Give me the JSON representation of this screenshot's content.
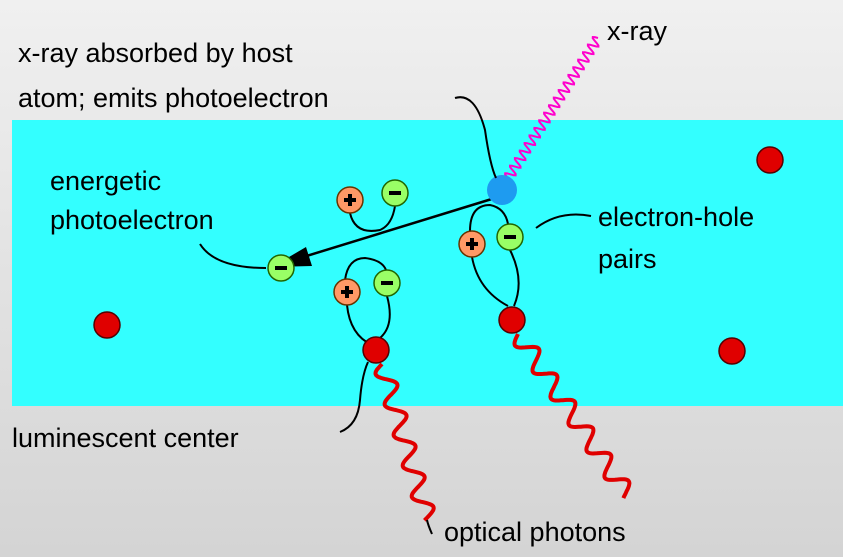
{
  "labels": {
    "x_ray": "x-ray",
    "absorbed": [
      "x-ray absorbed by host",
      "atom; emits photoelectron"
    ],
    "energetic": [
      "energetic",
      "photoelectron"
    ],
    "pairs": [
      "electron-hole",
      "pairs"
    ],
    "luminescent": "luminescent center",
    "optical": "optical photons"
  }
}
